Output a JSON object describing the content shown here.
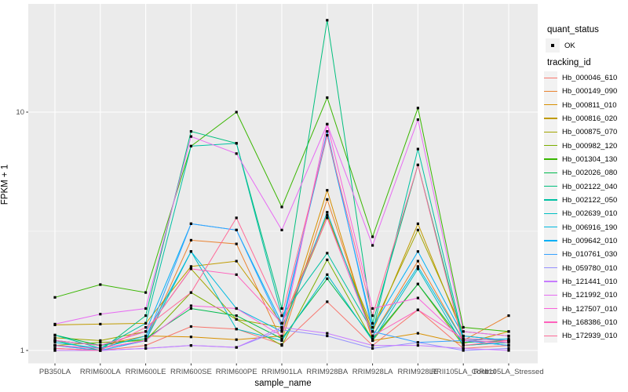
{
  "figure": {
    "panel_bg": "#EBEBEB",
    "grid_color": "#FFFFFF",
    "tick_color": "#333333",
    "tick_label_color": "#4D4D4D",
    "point_color": "#000000"
  },
  "y_axis": {
    "title": "FPKM + 1",
    "scale": "log10",
    "ticks": [
      {
        "label": "10",
        "value": 10
      },
      {
        "label": "1",
        "value": 1
      }
    ]
  },
  "x_axis": {
    "title": "sample_name"
  },
  "legend": {
    "quant_status_title": "quant_status",
    "quant_items": [
      {
        "label": "OK"
      }
    ],
    "tracking_title": "tracking_id"
  },
  "chart_data": {
    "type": "line",
    "title": "",
    "xlabel": "sample_name",
    "ylabel": "FPKM + 1",
    "y_scale": "log10",
    "y_ticks": [
      1,
      10
    ],
    "y_minor_ticks": [
      3.1623
    ],
    "ylim_log10": [
      -0.056,
      1.454
    ],
    "legend_position": "right",
    "grid": true,
    "categories": [
      "PB350LA",
      "RRIM600LA",
      "RRIM600LE",
      "RRIM600SE",
      "RRIM600PE",
      "RRIM901LA",
      "RRIM928BA",
      "RRIM928LA",
      "RRIM928LE",
      "RRII105LA_Control",
      "RRII105LA_Stressed"
    ],
    "series": [
      {
        "name": "Hb_000046_610",
        "color": "#F8766D",
        "values": [
          1.02,
          1.0,
          1.05,
          1.26,
          1.23,
          1.06,
          1.6,
          1.05,
          1.48,
          1.02,
          1.05
        ]
      },
      {
        "name": "Hb_000149_090",
        "color": "#EA8331",
        "values": [
          1.05,
          1.02,
          1.1,
          2.9,
          2.8,
          1.1,
          4.3,
          1.15,
          2.37,
          1.1,
          1.4
        ]
      },
      {
        "name": "Hb_000811_010",
        "color": "#D89000",
        "values": [
          1.1,
          1.05,
          1.15,
          1.14,
          1.11,
          1.15,
          4.7,
          1.1,
          1.18,
          1.07,
          1.2
        ]
      },
      {
        "name": "Hb_000816_020",
        "color": "#C09B00",
        "values": [
          1.28,
          1.29,
          1.3,
          2.25,
          2.37,
          1.3,
          3.7,
          1.2,
          3.4,
          1.15,
          1.1
        ]
      },
      {
        "name": "Hb_000875_070",
        "color": "#A3A500",
        "values": [
          1.13,
          1.1,
          1.2,
          2.2,
          1.35,
          1.25,
          3.6,
          1.25,
          3.2,
          1.2,
          1.15
        ]
      },
      {
        "name": "Hb_000982_120",
        "color": "#7CAE00",
        "values": [
          1.05,
          1.08,
          1.1,
          1.75,
          1.35,
          1.05,
          2.4,
          1.1,
          1.9,
          1.05,
          1.08
        ]
      },
      {
        "name": "Hb_001304_130",
        "color": "#39B600",
        "values": [
          1.67,
          1.89,
          1.75,
          7.2,
          10.0,
          4.0,
          11.5,
          3.0,
          10.4,
          1.25,
          1.2
        ]
      },
      {
        "name": "Hb_002026_080",
        "color": "#00BB4E",
        "values": [
          1.16,
          1.05,
          1.12,
          1.5,
          1.4,
          1.12,
          2.0,
          1.12,
          1.9,
          1.08,
          1.1
        ]
      },
      {
        "name": "Hb_002122_040",
        "color": "#00BF7D",
        "values": [
          1.1,
          1.0,
          1.4,
          8.3,
          7.4,
          1.5,
          24.3,
          1.3,
          6.0,
          1.1,
          1.05
        ]
      },
      {
        "name": "Hb_002122_050",
        "color": "#00C1A3",
        "values": [
          1.16,
          1.02,
          1.3,
          7.2,
          7.4,
          1.4,
          2.56,
          1.2,
          7.0,
          1.12,
          1.1
        ]
      },
      {
        "name": "Hb_002639_010",
        "color": "#00BFC4",
        "values": [
          1.05,
          1.0,
          1.1,
          2.6,
          1.23,
          1.1,
          2.08,
          1.1,
          2.2,
          1.05,
          1.08
        ]
      },
      {
        "name": "Hb_006916_190",
        "color": "#00BAE0",
        "values": [
          1.08,
          1.02,
          1.15,
          2.6,
          1.5,
          1.2,
          3.8,
          1.15,
          2.25,
          1.1,
          1.12
        ]
      },
      {
        "name": "Hb_009642_010",
        "color": "#00B0F6",
        "values": [
          1.1,
          1.05,
          1.2,
          3.4,
          3.2,
          1.3,
          8.0,
          1.25,
          2.6,
          1.15,
          1.1
        ]
      },
      {
        "name": "Hb_010761_030",
        "color": "#35A2FF",
        "values": [
          1.05,
          1.0,
          1.1,
          3.4,
          3.2,
          1.25,
          8.3,
          1.2,
          1.08,
          1.1,
          1.05
        ]
      },
      {
        "name": "Hb_059780_010",
        "color": "#9590FF",
        "values": [
          1.0,
          1.0,
          1.02,
          1.05,
          1.03,
          1.22,
          1.15,
          1.02,
          1.08,
          1.0,
          1.02
        ]
      },
      {
        "name": "Hb_121441_010",
        "color": "#C77CFF",
        "values": [
          1.0,
          1.0,
          1.02,
          1.05,
          1.03,
          1.25,
          1.18,
          1.05,
          1.05,
          1.02,
          1.0
        ]
      },
      {
        "name": "Hb_121992_010",
        "color": "#E76BF3",
        "values": [
          1.29,
          1.42,
          1.5,
          7.9,
          6.7,
          3.2,
          8.9,
          2.76,
          9.3,
          1.2,
          1.15
        ]
      },
      {
        "name": "Hb_127507_010",
        "color": "#FA62DB",
        "values": [
          1.05,
          1.02,
          1.1,
          1.54,
          1.5,
          1.15,
          8.9,
          1.5,
          1.66,
          1.1,
          1.08
        ]
      },
      {
        "name": "Hb_168386_010",
        "color": "#FF62BC",
        "values": [
          1.1,
          1.05,
          1.2,
          2.2,
          2.08,
          1.3,
          3.6,
          1.15,
          1.48,
          1.12,
          1.1
        ]
      },
      {
        "name": "Hb_172939_010",
        "color": "#FF6A98",
        "values": [
          1.02,
          1.0,
          1.25,
          1.75,
          3.6,
          1.4,
          8.0,
          1.4,
          6.0,
          1.05,
          1.1
        ]
      }
    ]
  }
}
